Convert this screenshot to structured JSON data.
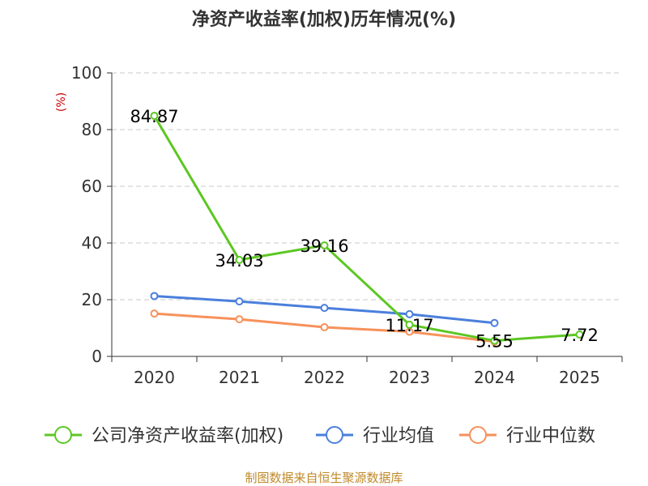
{
  "chart_data": {
    "type": "line",
    "title": "净资产收益率(加权)历年情况(%)",
    "ylabel": "(%)",
    "xlabel": "",
    "ylim": [
      0,
      100
    ],
    "yticks": [
      0,
      20,
      40,
      60,
      80,
      100
    ],
    "categories": [
      "2020",
      "2021",
      "2022",
      "2023",
      "2024",
      "2025"
    ],
    "grid": true,
    "legend_position": "bottom",
    "series": [
      {
        "name": "公司净资产收益率(加权)",
        "color": "#5cc722",
        "values": [
          84.87,
          34.03,
          39.16,
          11.17,
          5.55,
          7.72
        ],
        "labels": [
          "84.87",
          "34.03",
          "39.16",
          "11.17",
          "5.55",
          "7.72"
        ],
        "show_labels": true
      },
      {
        "name": "行业均值",
        "color": "#4a7fdc",
        "values": [
          21.3,
          19.4,
          17.1,
          14.9,
          11.8,
          null
        ],
        "show_labels": false
      },
      {
        "name": "行业中位数",
        "color": "#f7915a",
        "values": [
          15.1,
          13.1,
          10.3,
          8.7,
          5.2,
          null
        ],
        "show_labels": false
      }
    ],
    "source": "制图数据来自恒生聚源数据库"
  }
}
